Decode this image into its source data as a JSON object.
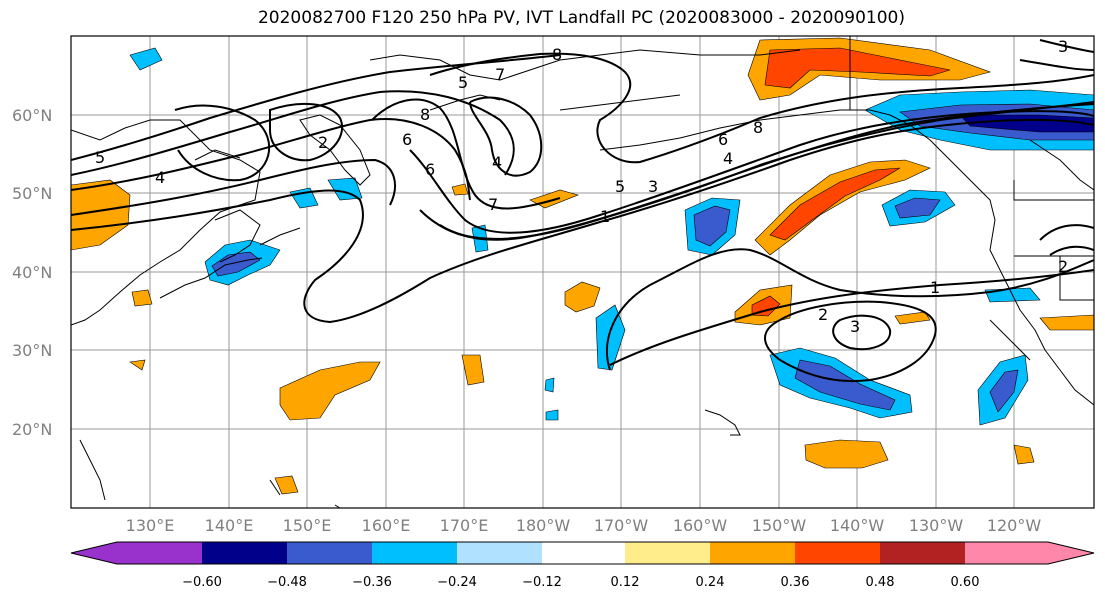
{
  "title": "2020082700 F120 250 hPa PV, IVT Landfall PC (2020083000 - 2020090100)",
  "map": {
    "lat_labels": [
      "60°N",
      "50°N",
      "40°N",
      "30°N",
      "20°N"
    ],
    "lon_labels": [
      "130°E",
      "140°E",
      "150°E",
      "160°E",
      "170°E",
      "180°W",
      "170°W",
      "160°W",
      "150°W",
      "140°W",
      "130°W",
      "120°W"
    ]
  },
  "contour_labels": [
    "5",
    "4",
    "2",
    "5",
    "7",
    "8",
    "6",
    "8",
    "7",
    "4",
    "6",
    "1",
    "5",
    "3",
    "6",
    "8",
    "4",
    "1",
    "2",
    "3",
    "3",
    "2"
  ],
  "colorbar": {
    "ticks": [
      "−0.60",
      "−0.48",
      "−0.36",
      "−0.24",
      "−0.12",
      "0.12",
      "0.24",
      "0.36",
      "0.48",
      "0.60"
    ],
    "colors": [
      "#9932cc",
      "#00008b",
      "#3a5bcd",
      "#00bfff",
      "#b0e2ff",
      "#ffffff",
      "#ffec8b",
      "#ffa500",
      "#ff4500",
      "#b22222",
      "#ff88aa"
    ]
  }
}
